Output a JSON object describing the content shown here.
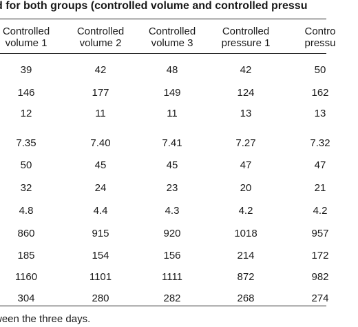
{
  "title": "d for both groups (controlled volume and controlled pressu",
  "columns": [
    [
      "Controlled",
      "volume 1"
    ],
    [
      "Controlled",
      "volume 2"
    ],
    [
      "Controlled",
      "volume 3"
    ],
    [
      "Controlled",
      "pressure 1"
    ],
    [
      "Contro",
      "pressu"
    ]
  ],
  "rows": [
    [
      "39",
      "42",
      "48",
      "42",
      "50"
    ],
    [
      "146",
      "177",
      "149",
      "124",
      "162"
    ],
    [
      "12",
      "11",
      "11",
      "13",
      "13"
    ],
    [
      "7.35",
      "7.40",
      "7.41",
      "7.27",
      "7.32"
    ],
    [
      "50",
      "45",
      "45",
      "47",
      "47"
    ],
    [
      "32",
      "24",
      "23",
      "20",
      "21"
    ],
    [
      "4.8",
      "4.4",
      "4.3",
      "4.2",
      "4.2"
    ],
    [
      "860",
      "915",
      "920",
      "1018",
      "957"
    ],
    [
      "185",
      "154",
      "156",
      "214",
      "172"
    ],
    [
      "1160",
      "1101",
      "1111",
      "872",
      "982"
    ],
    [
      "304",
      "280",
      "282",
      "268",
      "274"
    ]
  ],
  "footnote": "ween the three days."
}
